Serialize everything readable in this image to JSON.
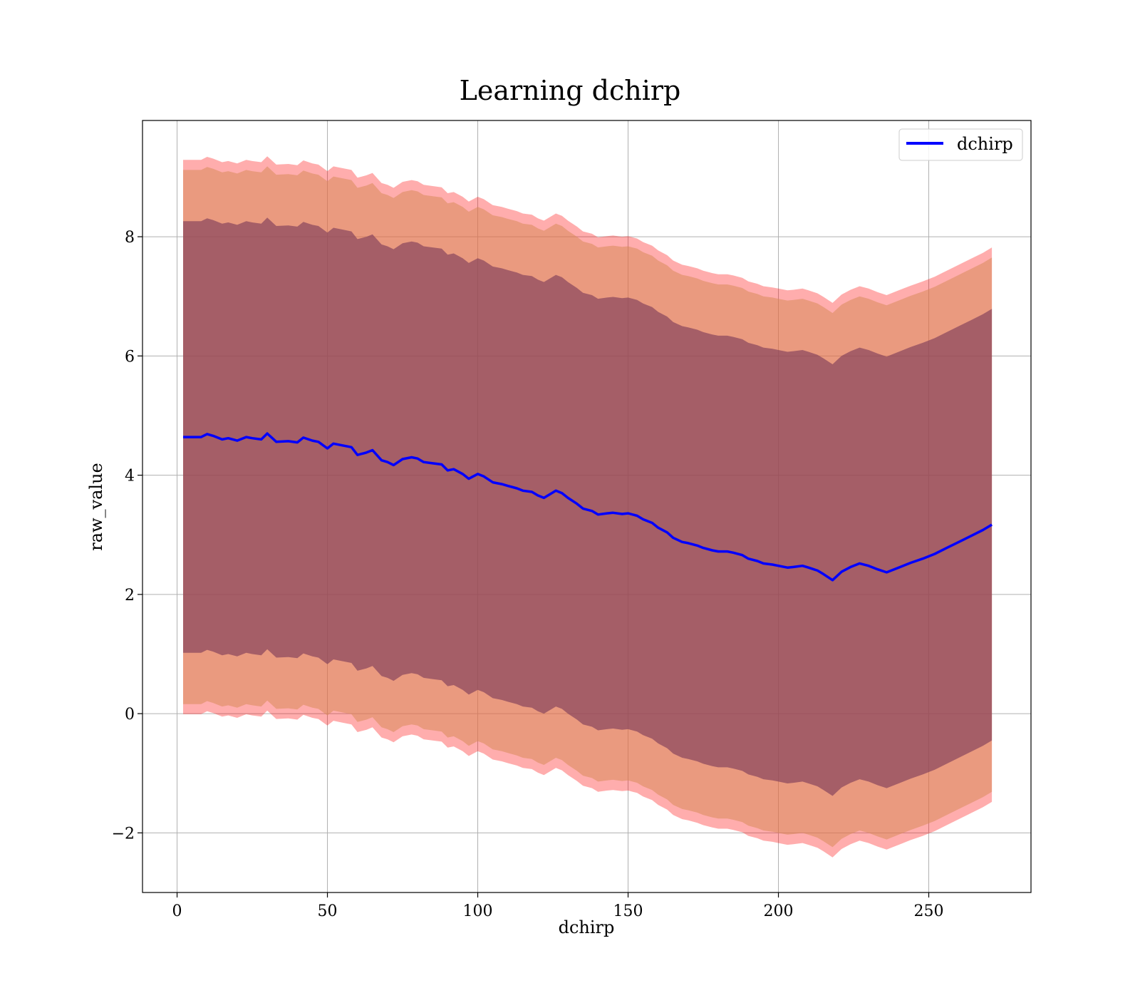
{
  "chart_data": {
    "type": "area",
    "title": "Learning dchirp",
    "xlabel": "dchirp",
    "ylabel": "raw_value",
    "xlim": [
      -11.5,
      284
    ],
    "ylim": [
      -3.0,
      9.95
    ],
    "x_ticks": [
      0,
      50,
      100,
      150,
      200,
      250
    ],
    "y_ticks": [
      -2,
      0,
      2,
      4,
      6,
      8
    ],
    "x_tick_labels": [
      "0",
      "50",
      "100",
      "150",
      "200",
      "250"
    ],
    "y_tick_labels": [
      "−2",
      "0",
      "2",
      "4",
      "6",
      "8"
    ],
    "grid": true,
    "legend_position": "top-right",
    "legend": [
      {
        "label": "dchirp",
        "color": "#0000ff"
      }
    ],
    "colors": {
      "mean_line": "#0000ff",
      "band_outer": "#ff0000",
      "band_middle": "#d98a5a",
      "band_inner": "#7a3a58"
    },
    "series": [
      {
        "name": "dchirp",
        "x": [
          2,
          8,
          10,
          12,
          15,
          17,
          20,
          23,
          25,
          28,
          30,
          33,
          37,
          40,
          42,
          45,
          47,
          50,
          52,
          55,
          58,
          60,
          63,
          65,
          68,
          70,
          72,
          75,
          78,
          80,
          82,
          85,
          88,
          90,
          92,
          95,
          97,
          100,
          102,
          105,
          108,
          110,
          113,
          115,
          118,
          120,
          122,
          124,
          126,
          128,
          130,
          133,
          135,
          138,
          140,
          143,
          145,
          148,
          150,
          153,
          155,
          158,
          160,
          163,
          165,
          168,
          170,
          173,
          175,
          178,
          180,
          183,
          185,
          188,
          190,
          193,
          195,
          198,
          200,
          203,
          205,
          208,
          210,
          213,
          215,
          218,
          221,
          224,
          227,
          230,
          233,
          236,
          240,
          244,
          248,
          252,
          256,
          260,
          264,
          268,
          271
        ],
        "y": [
          4.64,
          4.64,
          4.69,
          4.66,
          4.6,
          4.62,
          4.58,
          4.64,
          4.62,
          4.6,
          4.7,
          4.56,
          4.57,
          4.55,
          4.63,
          4.58,
          4.56,
          4.45,
          4.53,
          4.5,
          4.47,
          4.34,
          4.38,
          4.42,
          4.25,
          4.22,
          4.17,
          4.27,
          4.3,
          4.28,
          4.22,
          4.2,
          4.18,
          4.08,
          4.1,
          4.02,
          3.94,
          4.02,
          3.98,
          3.88,
          3.85,
          3.82,
          3.78,
          3.74,
          3.72,
          3.66,
          3.62,
          3.68,
          3.74,
          3.7,
          3.62,
          3.52,
          3.44,
          3.4,
          3.34,
          3.36,
          3.37,
          3.35,
          3.36,
          3.32,
          3.26,
          3.2,
          3.12,
          3.04,
          2.95,
          2.88,
          2.86,
          2.82,
          2.78,
          2.74,
          2.72,
          2.72,
          2.7,
          2.66,
          2.6,
          2.56,
          2.52,
          2.5,
          2.48,
          2.45,
          2.46,
          2.48,
          2.45,
          2.4,
          2.34,
          2.24,
          2.38,
          2.46,
          2.52,
          2.48,
          2.42,
          2.37,
          2.45,
          2.53,
          2.6,
          2.68,
          2.78,
          2.88,
          2.98,
          3.08,
          3.17
        ]
      }
    ],
    "bands": [
      {
        "level": "outer",
        "half_width": 4.65
      },
      {
        "level": "middle",
        "half_width": 4.48
      },
      {
        "level": "inner",
        "half_width": 3.62
      }
    ]
  }
}
